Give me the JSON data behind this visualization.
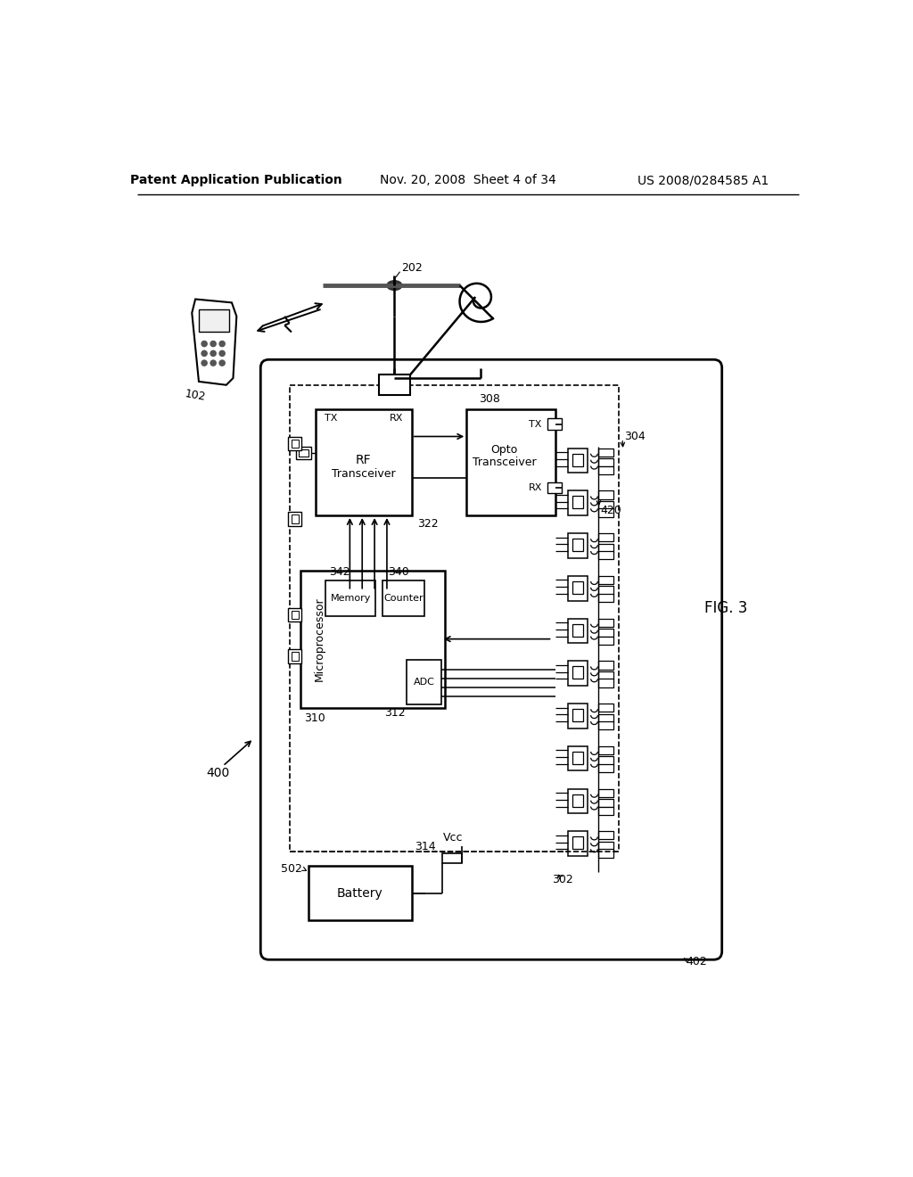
{
  "bg_color": "#ffffff",
  "header_left": "Patent Application Publication",
  "header_mid": "Nov. 20, 2008  Sheet 4 of 34",
  "header_right": "US 2008/0284585 A1",
  "fig_label": "FIG. 3"
}
